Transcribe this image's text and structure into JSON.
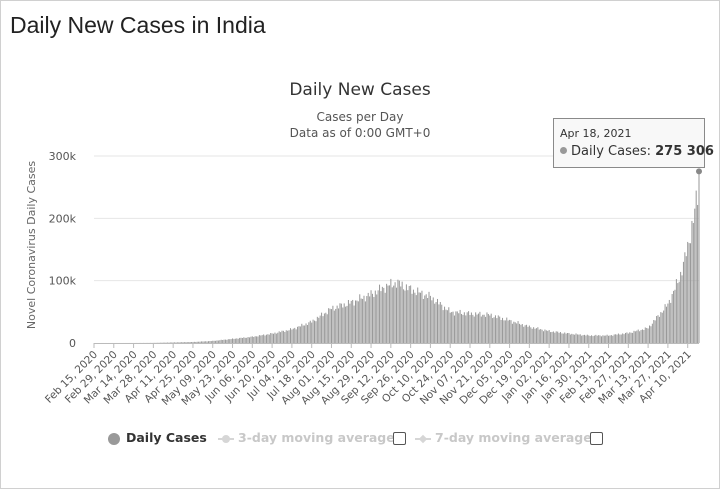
{
  "page": {
    "title": "Daily New Cases in India"
  },
  "chart_data": {
    "type": "bar",
    "title": "Daily New Cases",
    "subtitle_lines": [
      "Cases per Day",
      "Data as of 0:00 GMT+0"
    ],
    "ylabel": "Novel Coronavirus Daily Cases",
    "xlabel": "",
    "ylim": [
      0,
      300000
    ],
    "y_ticks": [
      0,
      100000,
      200000,
      300000
    ],
    "y_tick_labels": [
      "0",
      "100k",
      "200k",
      "300k"
    ],
    "x_tick_labels": [
      "Feb 15, 2020",
      "Feb 29, 2020",
      "Mar 14, 2020",
      "Mar 28, 2020",
      "Apr 11, 2020",
      "Apr 25, 2020",
      "May 09, 2020",
      "May 23, 2020",
      "Jun 06, 2020",
      "Jun 20, 2020",
      "Jul 04, 2020",
      "Jul 18, 2020",
      "Aug 01, 2020",
      "Aug 15, 2020",
      "Aug 29, 2020",
      "Sep 12, 2020",
      "Sep 26, 2020",
      "Oct 10, 2020",
      "Oct 24, 2020",
      "Nov 07, 2020",
      "Nov 21, 2020",
      "Dec 05, 2020",
      "Dec 19, 2020",
      "Jan 02, 2021",
      "Jan 16, 2021",
      "Jan 30, 2021",
      "Feb 13, 2021",
      "Feb 27, 2021",
      "Mar 13, 2021",
      "Mar 27, 2021",
      "Apr 10, 2021"
    ],
    "x_start": "Feb 15, 2020",
    "x_end": "Apr 18, 2021",
    "grid": true,
    "bar_color": "#999999",
    "series": [
      {
        "name": "Daily Cases",
        "points": [
          [
            "2020-02-15",
            0
          ],
          [
            "2020-03-14",
            50
          ],
          [
            "2020-03-28",
            200
          ],
          [
            "2020-04-11",
            900
          ],
          [
            "2020-04-25",
            1600
          ],
          [
            "2020-05-09",
            3300
          ],
          [
            "2020-05-23",
            6600
          ],
          [
            "2020-06-06",
            9900
          ],
          [
            "2020-06-20",
            15000
          ],
          [
            "2020-07-04",
            22000
          ],
          [
            "2020-07-18",
            34000
          ],
          [
            "2020-08-01",
            55000
          ],
          [
            "2020-08-15",
            65000
          ],
          [
            "2020-08-29",
            78000
          ],
          [
            "2020-09-08",
            90000
          ],
          [
            "2020-09-16",
            97000
          ],
          [
            "2020-09-26",
            86000
          ],
          [
            "2020-10-10",
            74000
          ],
          [
            "2020-10-24",
            50000
          ],
          [
            "2020-11-07",
            47000
          ],
          [
            "2020-11-21",
            45000
          ],
          [
            "2020-12-05",
            36000
          ],
          [
            "2020-12-19",
            26000
          ],
          [
            "2021-01-02",
            19000
          ],
          [
            "2021-01-16",
            15000
          ],
          [
            "2021-01-30",
            12000
          ],
          [
            "2021-02-13",
            12000
          ],
          [
            "2021-02-27",
            16000
          ],
          [
            "2021-03-13",
            24000
          ],
          [
            "2021-03-27",
            62000
          ],
          [
            "2021-04-04",
            103000
          ],
          [
            "2021-04-10",
            152000
          ],
          [
            "2021-04-14",
            200000
          ],
          [
            "2021-04-17",
            234000
          ],
          [
            "2021-04-18",
            275306
          ]
        ]
      }
    ],
    "tooltip": {
      "date": "Apr 18, 2021",
      "series": "Daily Cases",
      "value_text": "275 306"
    },
    "legend": {
      "items": [
        {
          "label": "Daily Cases",
          "enabled": true
        },
        {
          "label": "3-day moving average",
          "enabled": false
        },
        {
          "label": "7-day moving average",
          "enabled": false
        }
      ]
    }
  }
}
